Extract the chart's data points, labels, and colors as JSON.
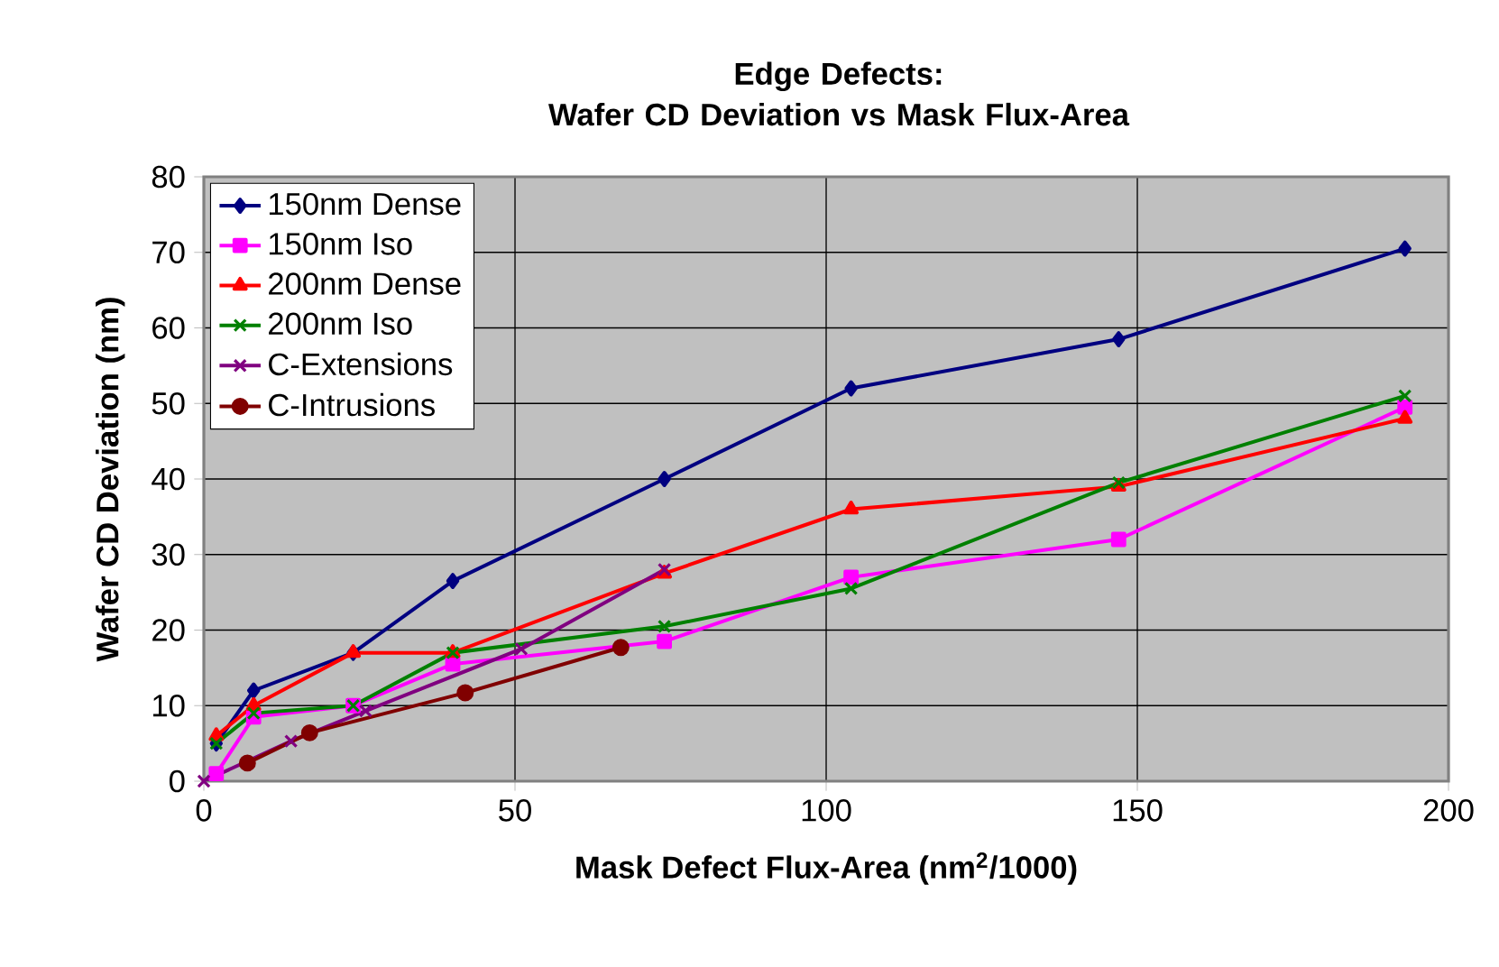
{
  "chart_data": {
    "type": "line",
    "title": "Edge Defects:\nWafer CD Deviation vs Mask Flux-Area",
    "xlabel": "Mask Defect Flux-Area (nm$^{2}$/1000)",
    "ylabel": "Wafer CD Deviation (nm)",
    "xlim": [
      0,
      200
    ],
    "xticks": [
      0,
      50,
      100,
      150,
      200
    ],
    "ylim": [
      0,
      80
    ],
    "yticks": [
      0,
      10,
      20,
      30,
      40,
      50,
      60,
      70,
      80
    ],
    "grid": true,
    "legend": "top left",
    "series": [
      {
        "name": "150nm Dense",
        "color": "#000080",
        "marker": "diamond",
        "x": [
          2,
          8,
          24,
          40,
          74,
          104,
          147,
          193
        ],
        "values": [
          5,
          12,
          17,
          26.5,
          40,
          52,
          58.5,
          70.5
        ]
      },
      {
        "name": "150nm Iso",
        "color": "#ff00ff",
        "marker": "square",
        "x": [
          2,
          8,
          24,
          40,
          74,
          104,
          147,
          193
        ],
        "values": [
          1,
          8.5,
          10,
          15.5,
          18.5,
          27,
          32,
          49.5
        ]
      },
      {
        "name": "200nm Dense",
        "color": "#ff0000",
        "marker": "triangle",
        "x": [
          2,
          8,
          24,
          40,
          74,
          104,
          147,
          193
        ],
        "values": [
          6,
          10,
          17,
          17,
          27.5,
          36,
          39,
          48
        ]
      },
      {
        "name": "200nm Iso",
        "color": "#008000",
        "marker": "cross",
        "x": [
          2,
          8,
          24,
          40,
          74,
          104,
          147,
          193
        ],
        "values": [
          5,
          9,
          10,
          17,
          20.5,
          25.5,
          39.5,
          51
        ]
      },
      {
        "name": "C-Extensions",
        "color": "#800080",
        "marker": "cross",
        "x": [
          0,
          14,
          26,
          51,
          74
        ],
        "values": [
          0,
          5.3,
          9.3,
          17.5,
          28
        ]
      },
      {
        "name": "C-Intrusions",
        "color": "#800000",
        "marker": "circle",
        "x": [
          7,
          17,
          42,
          67
        ],
        "values": [
          2.4,
          6.4,
          11.7,
          17.7
        ]
      }
    ]
  }
}
